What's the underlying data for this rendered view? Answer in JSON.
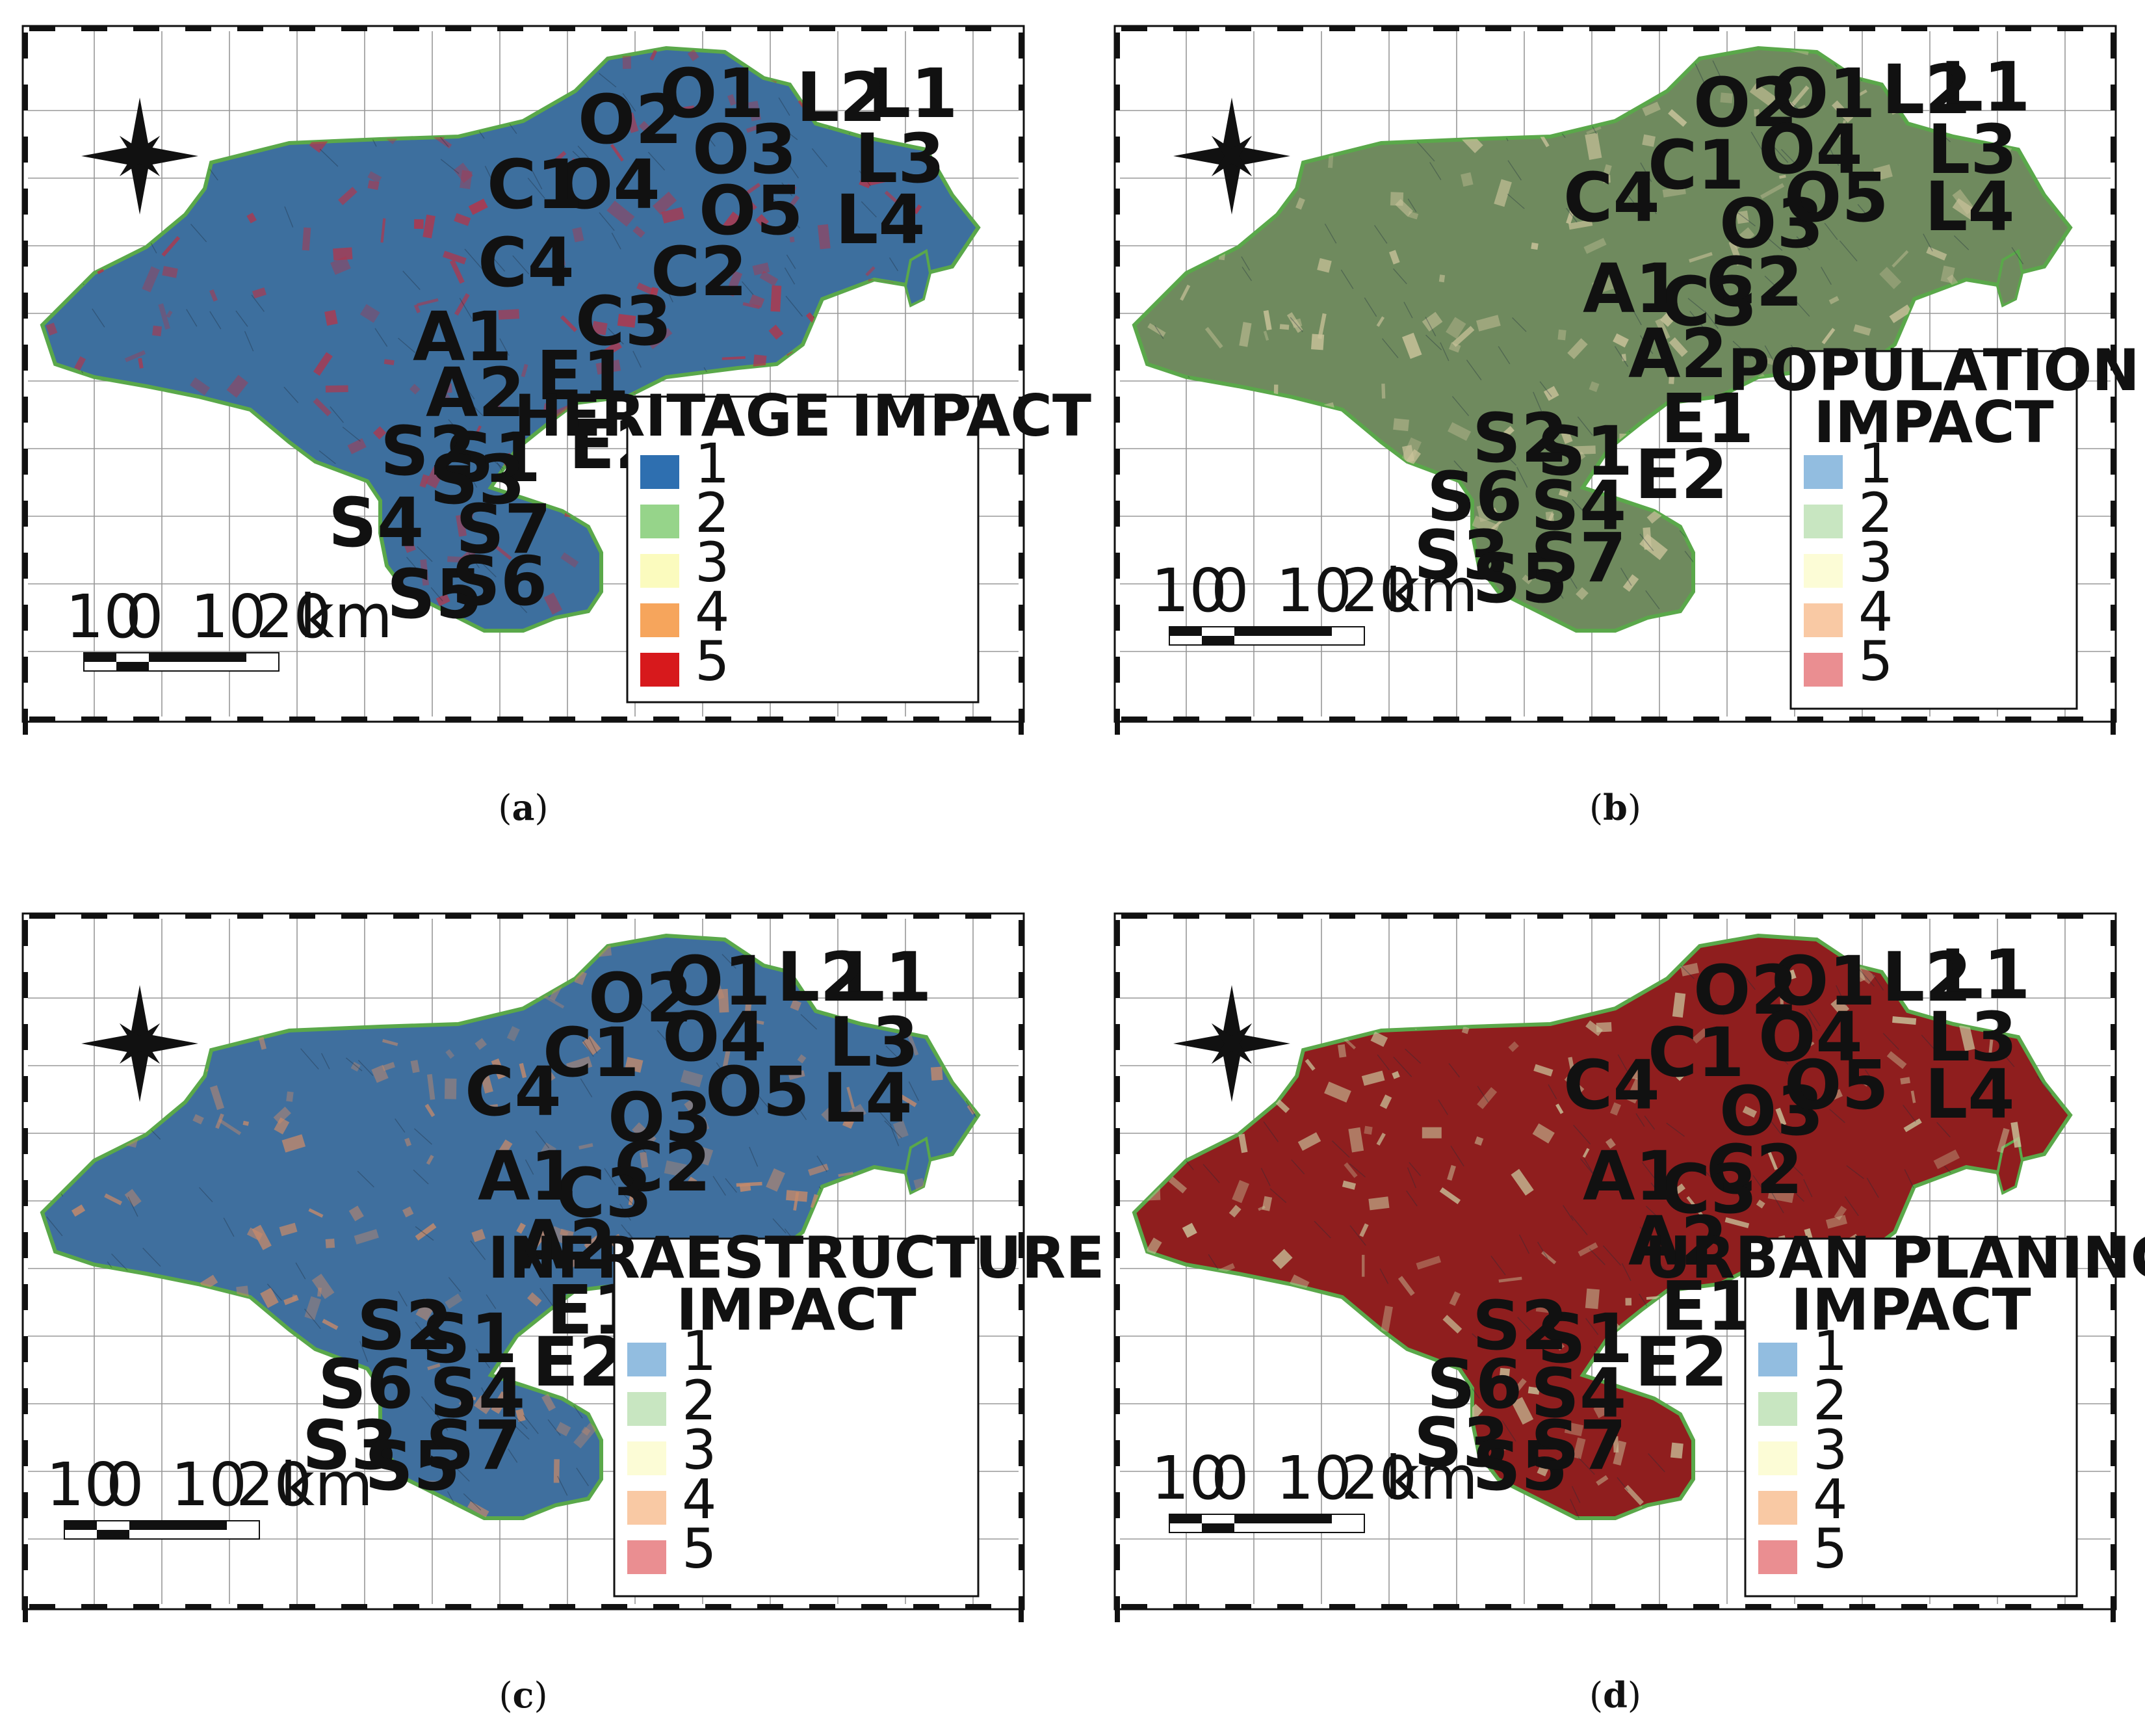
{
  "figure": {
    "panels": [
      {
        "id": "a",
        "caption_letter": "a",
        "legend_title_lines": [
          "HERITAGE IMPACT"
        ],
        "legend_classes": [
          {
            "label": "1",
            "color": "#2e6fb0"
          },
          {
            "label": "2",
            "color": "#96d48a"
          },
          {
            "label": "3",
            "color": "#fbfbbe"
          },
          {
            "label": "4",
            "color": "#f6a55c"
          },
          {
            "label": "5",
            "color": "#d7191c"
          }
        ],
        "map_fill": "#3d6f9e",
        "map_overlay": "#b3354a",
        "sites": [
          "O1",
          "O2",
          "O3",
          "O4",
          "O5",
          "L1",
          "L2",
          "L3",
          "L4",
          "C1",
          "C2",
          "C3",
          "C4",
          "A1",
          "A2",
          "E1",
          "E2",
          "S1",
          "S2",
          "S3",
          "S4",
          "S5",
          "S6",
          "S7"
        ]
      },
      {
        "id": "b",
        "caption_letter": "b",
        "legend_title_lines": [
          "POPULATION",
          "IMPACT"
        ],
        "legend_classes": [
          {
            "label": "1",
            "color": "#92bde0"
          },
          {
            "label": "2",
            "color": "#c8e6c1"
          },
          {
            "label": "3",
            "color": "#fcfcd6"
          },
          {
            "label": "4",
            "color": "#f9c9a4"
          },
          {
            "label": "5",
            "color": "#ea8e91"
          }
        ],
        "map_fill": "#6f8a5e",
        "map_overlay": "#c9c29a",
        "sites": [
          "O1",
          "O2",
          "O3",
          "O4",
          "O5",
          "L1",
          "L2",
          "L3",
          "L4",
          "C1",
          "C2",
          "C3",
          "C4",
          "A1",
          "A2",
          "E1",
          "E2",
          "S1",
          "S2",
          "S3",
          "S4",
          "S5",
          "S6",
          "S7"
        ]
      },
      {
        "id": "c",
        "caption_letter": "c",
        "legend_title_lines": [
          "INFRAESTRUCTURE",
          "IMPACT"
        ],
        "legend_classes": [
          {
            "label": "1",
            "color": "#92bde0"
          },
          {
            "label": "2",
            "color": "#c8e6c1"
          },
          {
            "label": "3",
            "color": "#fcfcd6"
          },
          {
            "label": "4",
            "color": "#f9c9a4"
          },
          {
            "label": "5",
            "color": "#ea8e91"
          }
        ],
        "map_fill": "#3f6f9e",
        "map_overlay": "#c78a6a",
        "sites": [
          "O1",
          "O2",
          "O3",
          "O4",
          "O5",
          "L1",
          "L2",
          "L3",
          "L4",
          "C1",
          "C2",
          "C3",
          "C4",
          "A1",
          "A2",
          "E1",
          "E2",
          "S1",
          "S2",
          "S3",
          "S4",
          "S5",
          "S6",
          "S7"
        ]
      },
      {
        "id": "d",
        "caption_letter": "d",
        "legend_title_lines": [
          "URBAN PLANING",
          "IMPACT"
        ],
        "legend_classes": [
          {
            "label": "1",
            "color": "#92bde0"
          },
          {
            "label": "2",
            "color": "#c8e6c1"
          },
          {
            "label": "3",
            "color": "#fcfcd6"
          },
          {
            "label": "4",
            "color": "#f9c9a4"
          },
          {
            "label": "5",
            "color": "#ea8e91"
          }
        ],
        "map_fill": "#8f1e1e",
        "map_overlay": "#c9c29a",
        "sites": [
          "O1",
          "O2",
          "O3",
          "O4",
          "O5",
          "L1",
          "L2",
          "L3",
          "L4",
          "C1",
          "C2",
          "C3",
          "C4",
          "A1",
          "A2",
          "E1",
          "E2",
          "S1",
          "S2",
          "S3",
          "S4",
          "S5",
          "S6",
          "S7"
        ]
      }
    ],
    "scale_bar": {
      "ticks": [
        "10",
        "0",
        "10",
        "20"
      ],
      "unit": "km"
    }
  }
}
